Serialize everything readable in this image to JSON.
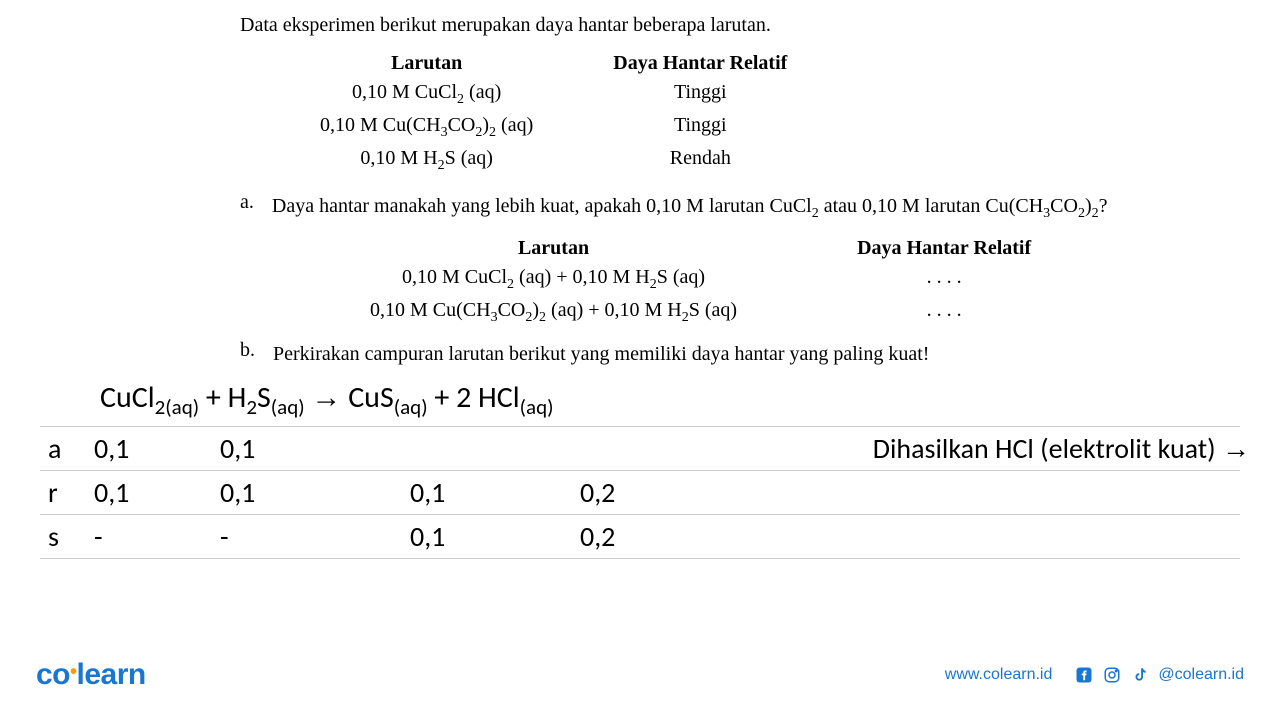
{
  "intro": "Data eksperimen berikut merupakan daya hantar beberapa larutan.",
  "table1": {
    "headers": [
      "Larutan",
      "Daya Hantar Relatif"
    ],
    "rows": [
      {
        "larutan_html": "0,10 M CuCl<sub>2</sub> (aq)",
        "daya": "Tinggi"
      },
      {
        "larutan_html": "0,10 M Cu(CH<sub>3</sub>CO<sub>2</sub>)<sub>2</sub> (aq)",
        "daya": "Tinggi"
      },
      {
        "larutan_html": "0,10 M H<sub>2</sub>S (aq)",
        "daya": "Rendah"
      }
    ]
  },
  "question_a": {
    "label": "a.",
    "text_html": "Daya hantar manakah yang lebih kuat, apakah 0,10 M larutan CuCl<sub>2</sub> atau 0,10 M larutan Cu(CH<sub>3</sub>CO<sub>2</sub>)<sub>2</sub>?"
  },
  "table2": {
    "headers": [
      "Larutan",
      "Daya Hantar Relatif"
    ],
    "rows": [
      {
        "larutan_html": "0,10 M CuCl<sub>2</sub> (aq) + 0,10 M H<sub>2</sub>S (aq)",
        "daya": ". . . ."
      },
      {
        "larutan_html": "0,10 M Cu(CH<sub>3</sub>CO<sub>2</sub>)<sub>2</sub> (aq) + 0,10 M H<sub>2</sub>S (aq)",
        "daya": ". . . ."
      }
    ]
  },
  "question_b": {
    "label": "b.",
    "text": "Perkirakan campuran larutan berikut yang memiliki daya hantar yang paling kuat!"
  },
  "work": {
    "equation_html": "CuCl<sub>2(aq)</sub> + H<sub>2</sub>S<sub>(aq)</sub> <span class='arrow'>→</span> CuS<sub>(aq)</sub> + 2 HCl<sub>(aq)</sub>",
    "rows": [
      {
        "label": "a",
        "c1": "0,1",
        "c2": "0,1",
        "c3": "",
        "c4": "",
        "result_html": "Dihasilkan HCl (elektrolit kuat) <span class='arrow'>→</span>"
      },
      {
        "label": "r",
        "c1": "0,1",
        "c2": "0,1",
        "c3": "0,1",
        "c4": "0,2",
        "result_html": ""
      },
      {
        "label": "s",
        "c1": "-",
        "c2": "-",
        "c3": "0,1",
        "c4": "0,2",
        "result_html": ""
      }
    ]
  },
  "footer": {
    "logo_pre": "co",
    "logo_post": "learn",
    "website": "www.colearn.id",
    "handle": "@colearn.id"
  },
  "colors": {
    "text": "#000000",
    "brand": "#1976d2",
    "accent": "#ff9800",
    "border": "#cccccc",
    "bg": "#ffffff"
  }
}
